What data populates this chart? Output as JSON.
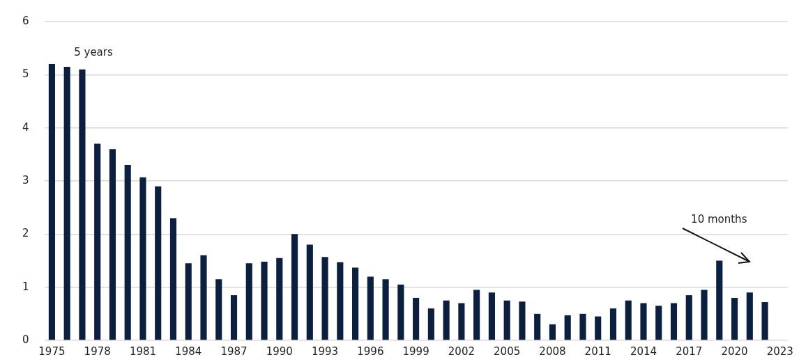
{
  "chart_data": {
    "type": "bar",
    "categories": [
      "1975",
      null,
      null,
      "1978",
      null,
      null,
      "1981",
      null,
      null,
      "1984",
      null,
      null,
      "1987",
      null,
      null,
      "1990",
      null,
      null,
      "1993",
      null,
      null,
      "1996",
      null,
      null,
      "1999",
      null,
      null,
      "2002",
      null,
      null,
      "2005",
      null,
      null,
      "2008",
      null,
      null,
      "2011",
      null,
      null,
      "2014",
      null,
      null,
      "2017",
      null,
      null,
      "2020",
      null,
      null,
      "2023"
    ],
    "values": [
      5.2,
      5.15,
      5.1,
      3.7,
      3.6,
      3.3,
      3.07,
      2.9,
      2.3,
      1.45,
      1.6,
      1.15,
      0.85,
      1.45,
      1.48,
      1.55,
      2.0,
      1.8,
      1.57,
      1.47,
      1.37,
      1.2,
      1.15,
      1.05,
      0.8,
      0.6,
      0.75,
      0.7,
      0.95,
      0.9,
      0.75,
      0.73,
      0.5,
      0.3,
      0.47,
      0.5,
      0.45,
      0.6,
      0.75,
      0.7,
      0.65,
      0.7,
      0.85,
      0.95,
      1.5,
      0.8,
      0.9,
      0.72,
      null
    ],
    "color": "#0d1f3f",
    "ylim": [
      0,
      6
    ],
    "yticks": [
      0,
      1,
      2,
      3,
      4,
      5,
      6
    ],
    "grid": "y",
    "annotations": [
      "5 years",
      "10 months"
    ]
  }
}
